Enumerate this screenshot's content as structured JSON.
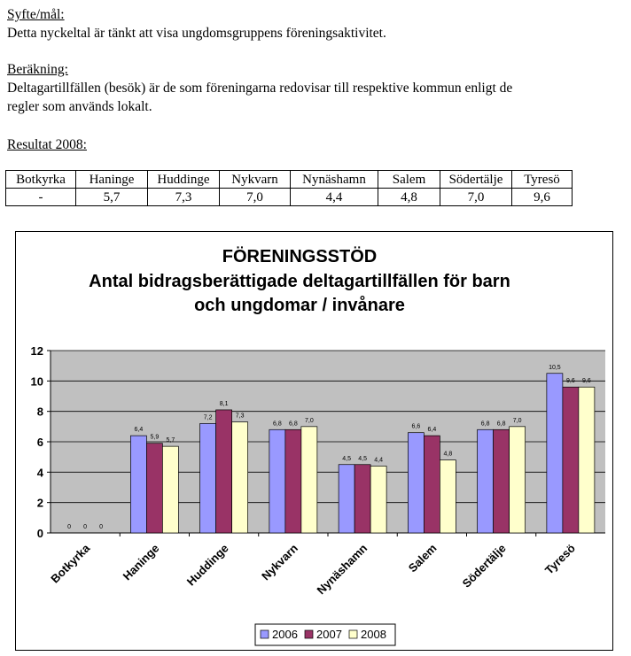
{
  "doc": {
    "syfte_heading": "Syfte/mål:",
    "syfte_text": "Detta nyckeltal är tänkt att visa ungdomsgruppens föreningsaktivitet.",
    "berakning_heading": "Beräkning:",
    "berakning_text_line1": "Deltagartillfällen (besök) är de som föreningarna redovisar till respektive kommun enligt de",
    "berakning_text_line2": "regler som används lokalt.",
    "resultat_heading": "Resultat 2008:"
  },
  "result_table": {
    "headers": [
      "Botkyrka",
      "Haninge",
      "Huddinge",
      "Nykvarn",
      "Nynäshamn",
      "Salem",
      "Södertälje",
      "Tyresö"
    ],
    "values": [
      "-",
      "5,7",
      "7,3",
      "7,0",
      "4,4",
      "4,8",
      "7,0",
      "9,6"
    ]
  },
  "chart_data": {
    "type": "bar",
    "title_line1": "FÖRENINGSSTÖD",
    "title_line2": "Antal bidragsberättigade deltagartillfällen för barn",
    "title_line3": "och ungdomar / invånare",
    "categories": [
      "Botkyrka",
      "Haninge",
      "Huddinge",
      "Nykvarn",
      "Nynäshamn",
      "Salem",
      "Södertälje",
      "Tyresö"
    ],
    "series": [
      {
        "name": "2006",
        "color": "#9999ff",
        "values": [
          0,
          6.4,
          7.2,
          6.8,
          4.5,
          6.6,
          6.8,
          10.5
        ],
        "labels": [
          "0",
          "6,4",
          "7,2",
          "6,8",
          "4,5",
          "6,6",
          "6,8",
          "10,5"
        ]
      },
      {
        "name": "2007",
        "color": "#993366",
        "values": [
          0,
          5.9,
          8.1,
          6.8,
          4.5,
          6.4,
          6.8,
          9.6
        ],
        "labels": [
          "0",
          "5,9",
          "8,1",
          "6,8",
          "4,5",
          "6,4",
          "6,8",
          "9,6"
        ]
      },
      {
        "name": "2008",
        "color": "#ffffcc",
        "values": [
          0,
          5.7,
          7.3,
          7.0,
          4.4,
          4.8,
          7.0,
          9.6
        ],
        "labels": [
          "0",
          "5,7",
          "7,3",
          "7,0",
          "4,4",
          "4,8",
          "7,0",
          "9,6"
        ]
      }
    ],
    "ylim": [
      0,
      12
    ],
    "yticks": [
      "0",
      "2",
      "4",
      "6",
      "8",
      "10",
      "12"
    ],
    "grid": true,
    "legend_position": "bottom"
  }
}
